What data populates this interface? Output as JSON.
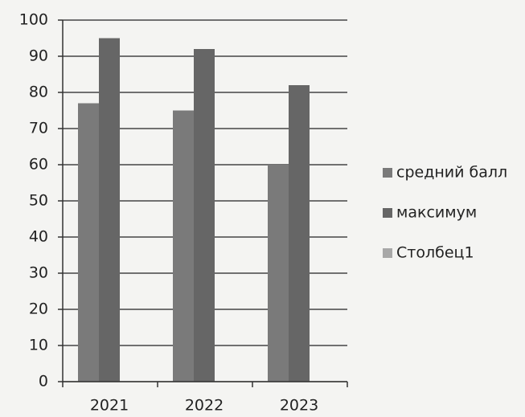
{
  "chart_data": {
    "type": "bar",
    "categories": [
      "2021",
      "2022",
      "2023"
    ],
    "series": [
      {
        "name": "средний балл",
        "color": "#7a7a7a",
        "values": [
          77,
          75,
          60
        ]
      },
      {
        "name": "максимум",
        "color": "#666666",
        "values": [
          95,
          92,
          82
        ]
      },
      {
        "name": "Столбец1",
        "color": "#a8a8a8",
        "values": [
          null,
          null,
          null
        ]
      }
    ],
    "ylim": [
      0,
      100
    ],
    "yticks": [
      0,
      10,
      20,
      30,
      40,
      50,
      60,
      70,
      80,
      90,
      100
    ],
    "grid": true,
    "legend": "right"
  }
}
